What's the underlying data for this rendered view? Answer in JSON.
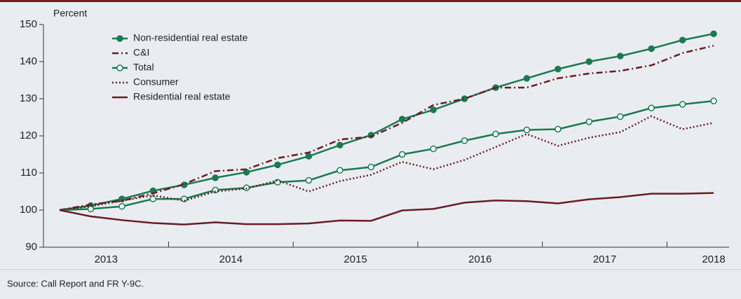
{
  "chart_data": {
    "type": "line",
    "ylabel": "Percent",
    "source": "Source: Call Report and FR Y-9C.",
    "categories": [
      "2013",
      null,
      null,
      null,
      "2014",
      null,
      null,
      null,
      "2015",
      null,
      null,
      null,
      "2016",
      null,
      null,
      null,
      "2017",
      null,
      null,
      null,
      "2018",
      null
    ],
    "ylim": [
      90,
      150
    ],
    "yticks": [
      90,
      100,
      110,
      120,
      130,
      140,
      150
    ],
    "legend": "upper left",
    "series": [
      {
        "name": "Non-residential real estate",
        "color": "#1a7a50",
        "style": "solid",
        "marker": "filled",
        "values": [
          100,
          101.2,
          103,
          105.2,
          106.8,
          108.7,
          110.2,
          112.2,
          114.5,
          117.5,
          120.2,
          124.5,
          127,
          130,
          133,
          135.5,
          138,
          140,
          141.5,
          143.5,
          145.8,
          147.5
        ]
      },
      {
        "name": "C&I",
        "color": "#6b1c23",
        "style": "dashdot",
        "marker": "none",
        "values": [
          100,
          101.5,
          102.5,
          104.5,
          107,
          110.5,
          111,
          114,
          115.5,
          119,
          119.8,
          123.5,
          128.3,
          130,
          133,
          133,
          135.5,
          136.8,
          137.5,
          139,
          142.3,
          144.3
        ]
      },
      {
        "name": "Total",
        "color": "#1a7a50",
        "style": "solid",
        "marker": "open",
        "values": [
          100,
          100.3,
          101,
          103,
          103,
          105.4,
          106,
          107.5,
          108,
          110.7,
          111.6,
          115,
          116.5,
          118.7,
          120.5,
          121.6,
          121.8,
          123.8,
          125.2,
          127.5,
          128.5,
          129.4
        ]
      },
      {
        "name": "Consumer",
        "color": "#6b1c23",
        "style": "dotted",
        "marker": "none",
        "values": [
          100,
          101,
          102.5,
          104,
          102.5,
          105,
          105.8,
          108,
          105,
          107.8,
          109.5,
          113,
          111,
          113.5,
          117,
          120.5,
          117.3,
          119.5,
          121,
          125.3,
          121.8,
          123.5
        ]
      },
      {
        "name": "Residential real estate",
        "color": "#6b1c23",
        "style": "solid",
        "marker": "none",
        "values": [
          100,
          98.3,
          97.3,
          96.5,
          96.1,
          96.7,
          96.2,
          96.2,
          96.4,
          97.2,
          97.1,
          99.9,
          100.3,
          102,
          102.6,
          102.4,
          101.8,
          102.9,
          103.5,
          104.4,
          104.4,
          104.6
        ]
      }
    ]
  }
}
